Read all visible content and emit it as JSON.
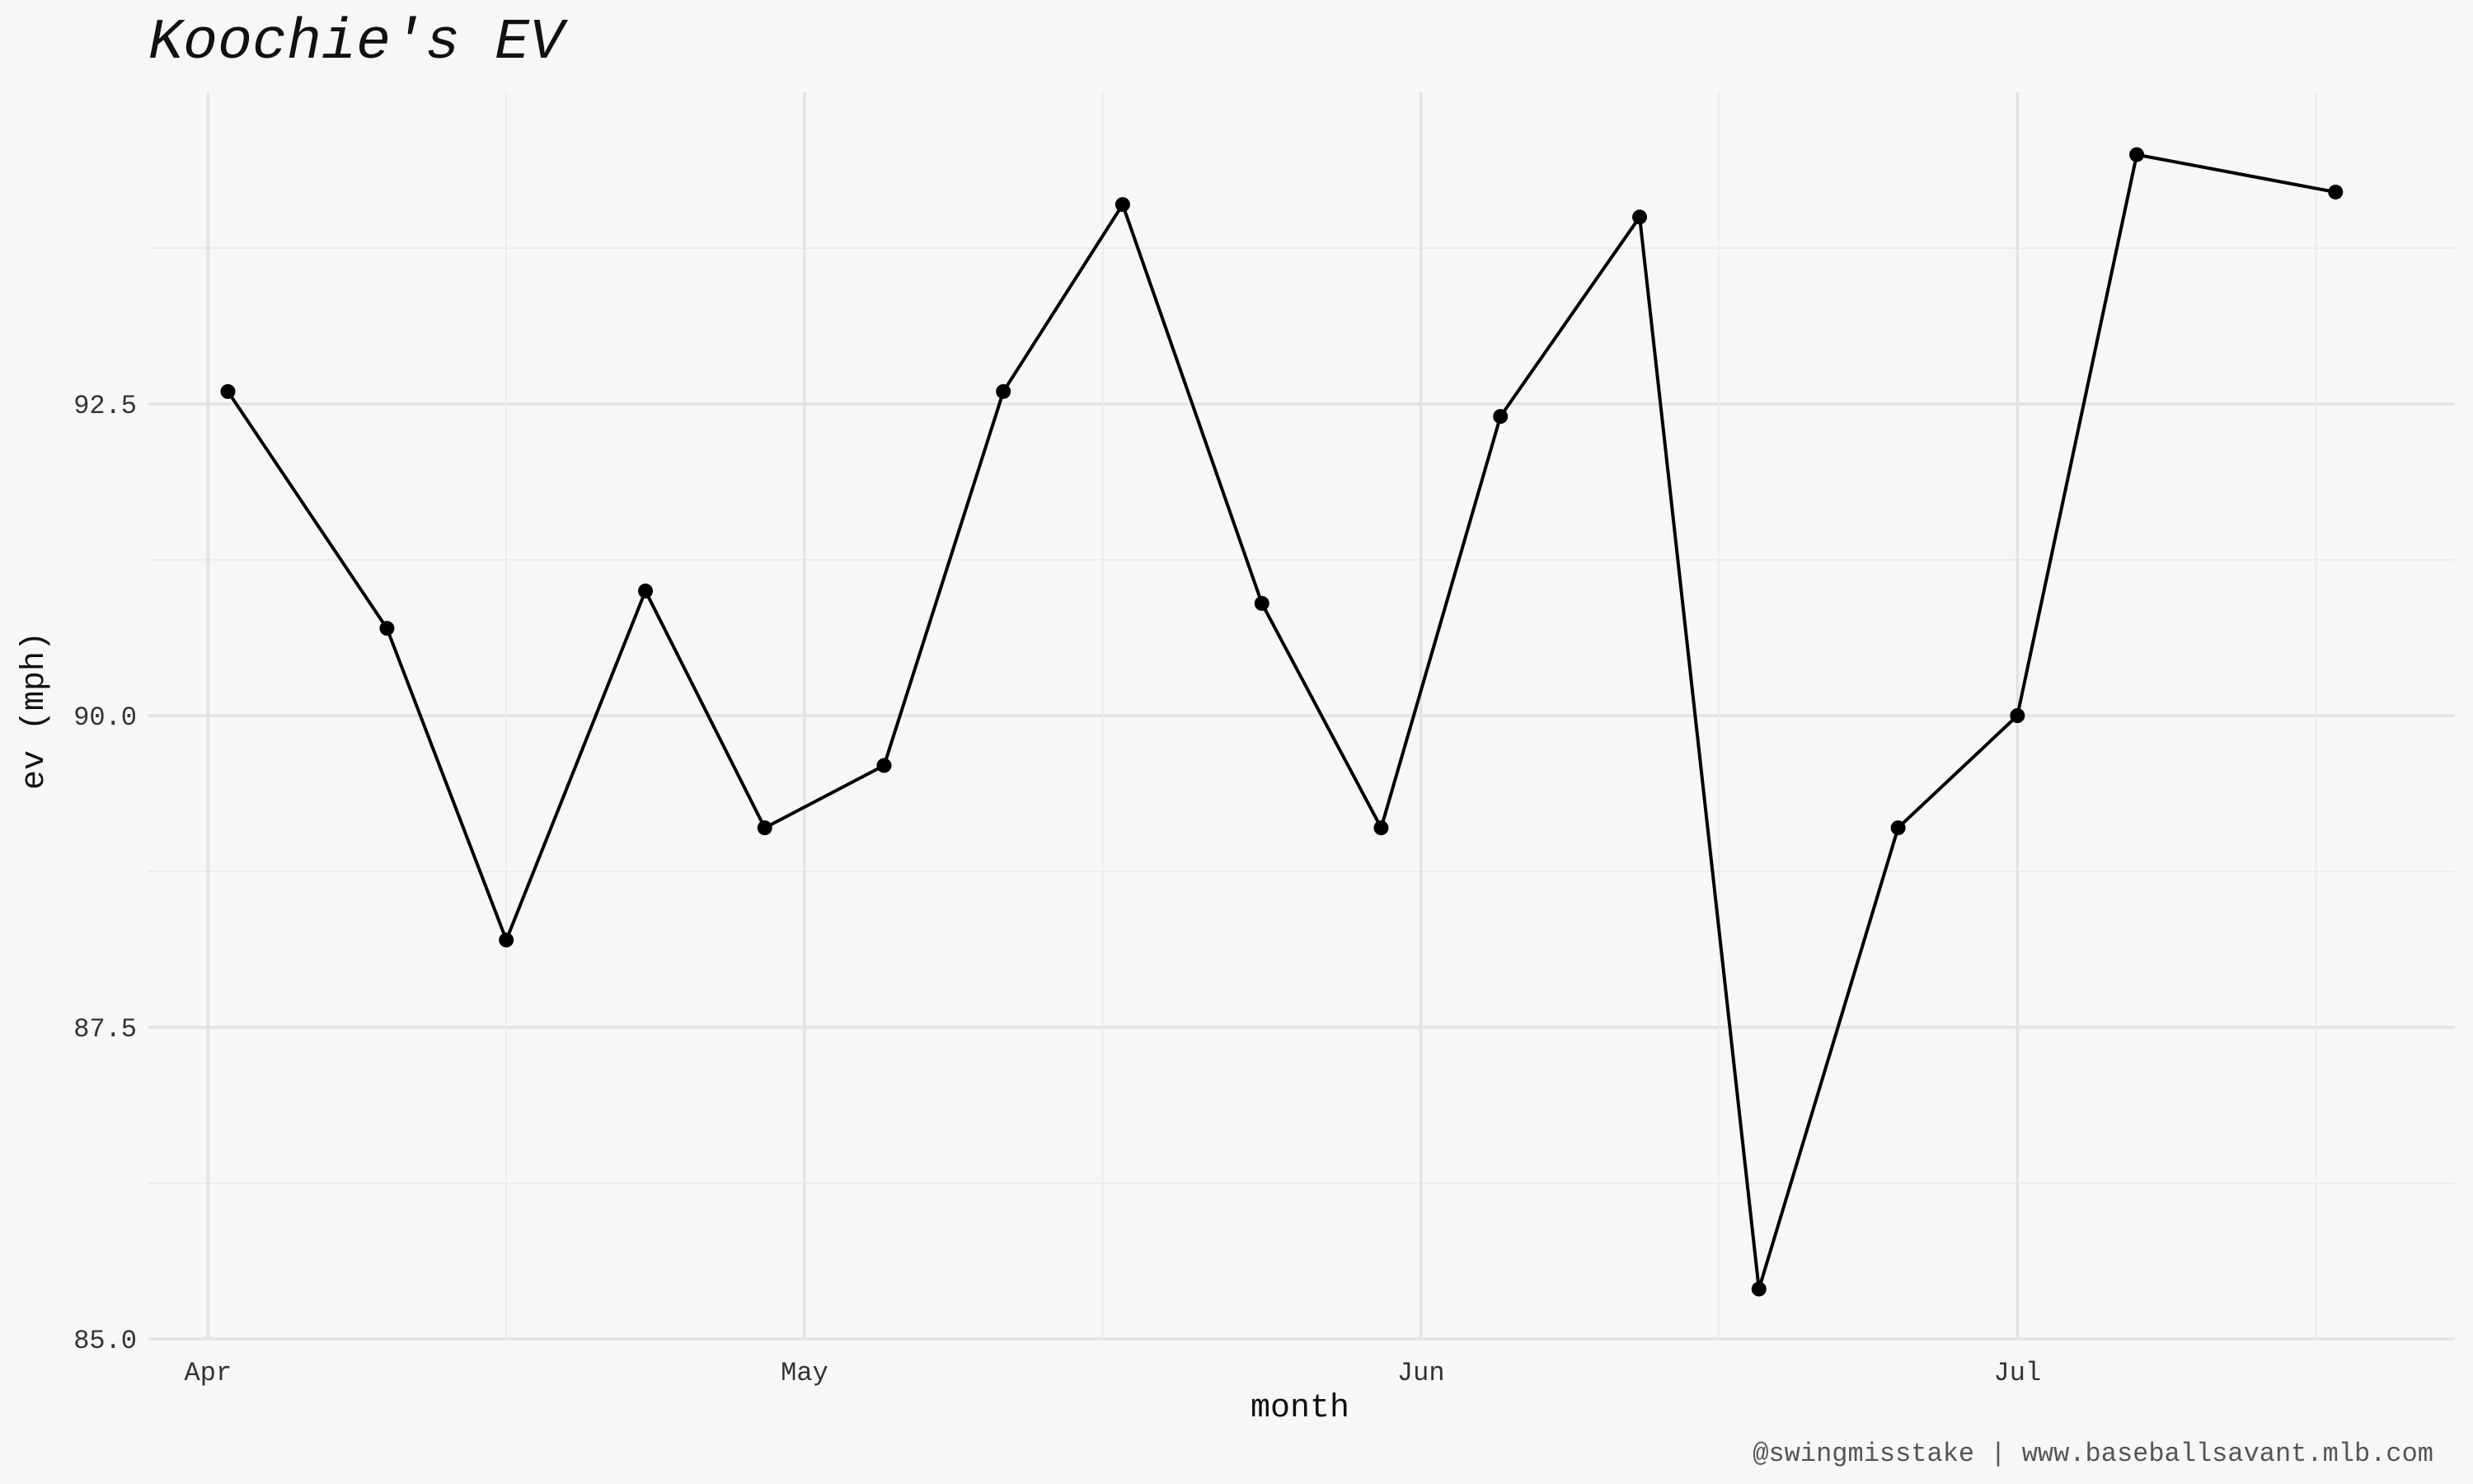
{
  "chart_data": {
    "type": "line",
    "title": "Koochie's EV",
    "xlabel": "month",
    "ylabel": "ev (mph)",
    "caption": "@swingmisstake | www.baseballsavant.mlb.com",
    "x_ticks": [
      {
        "label": "Apr",
        "date": "2019-04-01"
      },
      {
        "label": "May",
        "date": "2019-05-01"
      },
      {
        "label": "Jun",
        "date": "2019-06-01"
      },
      {
        "label": "Jul",
        "date": "2019-07-01"
      }
    ],
    "x_minor": [
      "2019-04-16",
      "2019-05-16",
      "2019-06-16",
      "2019-07-16"
    ],
    "xlim": [
      "2019-03-29",
      "2019-07-23"
    ],
    "y_ticks": [
      "85.0",
      "87.5",
      "90.0",
      "92.5"
    ],
    "y_minor": [
      86.25,
      88.75,
      91.25,
      93.75
    ],
    "ylim": [
      85.0,
      95.0
    ],
    "grid": true,
    "color": "#000000",
    "x": [
      "2019-04-02",
      "2019-04-10",
      "2019-04-16",
      "2019-04-23",
      "2019-04-29",
      "2019-05-05",
      "2019-05-11",
      "2019-05-17",
      "2019-05-24",
      "2019-05-30",
      "2019-06-05",
      "2019-06-12",
      "2019-06-18",
      "2019-06-25",
      "2019-07-01",
      "2019-07-07",
      "2019-07-17"
    ],
    "y": [
      92.6,
      90.7,
      88.2,
      91.0,
      89.1,
      89.6,
      92.6,
      94.1,
      90.9,
      89.1,
      92.4,
      94.0,
      85.4,
      89.1,
      90.0,
      94.5,
      94.2
    ]
  }
}
